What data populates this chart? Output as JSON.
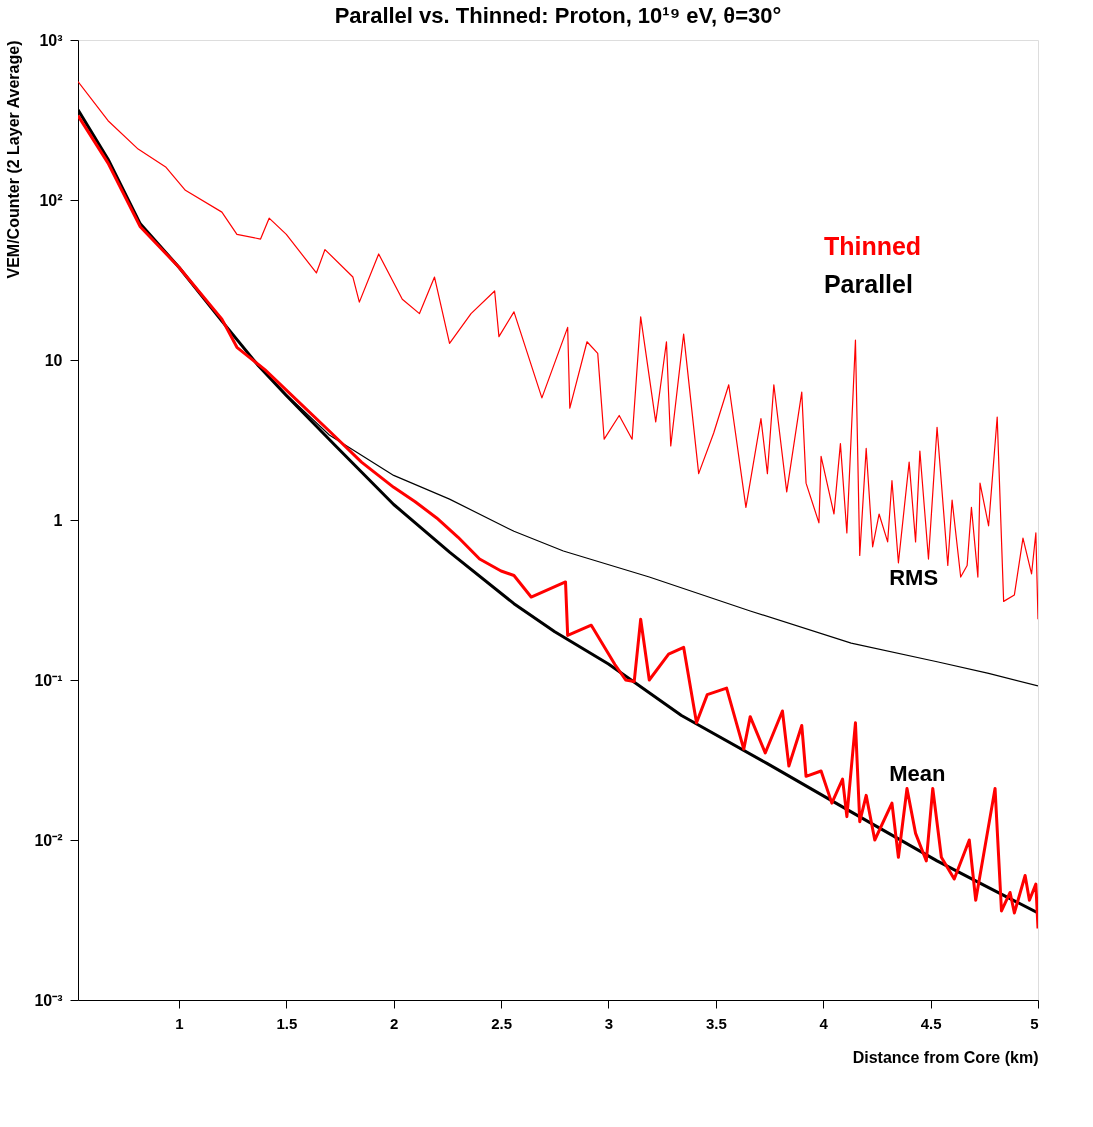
{
  "chart_data": {
    "type": "line",
    "title": "Parallel vs. Thinned: Proton, 10¹⁹ eV, θ=30°",
    "xlabel": "Distance from Core (km)",
    "ylabel": "VEM/Counter (2 Layer Average)",
    "xlim": [
      0.53,
      5
    ],
    "xticks": [
      1,
      1.5,
      2,
      2.5,
      3,
      3.5,
      4,
      4.5,
      5
    ],
    "ylim": [
      0.001,
      1000
    ],
    "yticks": [
      {
        "value": 0.001,
        "label": "10⁻³"
      },
      {
        "value": 0.01,
        "label": "10⁻²"
      },
      {
        "value": 0.1,
        "label": "10⁻¹"
      },
      1,
      10,
      {
        "value": 100,
        "label": "10²"
      },
      {
        "value": 1000,
        "label": "10³"
      }
    ],
    "log": "y",
    "grid": false,
    "legend": "top right",
    "line_style": "solid",
    "marker": "none",
    "series": [
      {
        "name": "Thinned",
        "color": "#ff0000",
        "x": [
          0.53,
          0.67,
          0.82,
          1.0,
          1.2,
          1.27,
          1.4,
          1.55,
          1.7,
          1.85,
          2.0,
          2.1,
          2.2,
          2.3,
          2.4,
          2.5,
          2.56,
          2.64,
          2.8,
          2.81,
          2.92,
          3.03,
          3.08,
          3.12,
          3.15,
          3.19,
          3.28,
          3.35,
          3.41,
          3.46,
          3.55,
          3.63,
          3.66,
          3.73,
          3.81,
          3.84,
          3.9,
          3.92,
          3.99,
          4.04,
          4.09,
          4.11,
          4.15,
          4.17,
          4.2,
          4.24,
          4.32,
          4.35,
          4.39,
          4.43,
          4.48,
          4.51,
          4.55,
          4.61,
          4.68,
          4.71,
          4.8,
          4.83,
          4.87,
          4.89,
          4.94,
          4.96,
          4.99,
          5.0
        ],
        "values": [
          337,
          170,
          68,
          38,
          18,
          12,
          8.7,
          5.6,
          3.6,
          2.3,
          1.6,
          1.3,
          1.03,
          0.78,
          0.57,
          0.48,
          0.45,
          0.33,
          0.41,
          0.19,
          0.22,
          0.125,
          0.1,
          0.098,
          0.24,
          0.1,
          0.145,
          0.16,
          0.054,
          0.081,
          0.089,
          0.037,
          0.059,
          0.035,
          0.064,
          0.029,
          0.052,
          0.025,
          0.027,
          0.017,
          0.024,
          0.014,
          0.054,
          0.013,
          0.019,
          0.01,
          0.017,
          0.0078,
          0.021,
          0.011,
          0.0074,
          0.021,
          0.0078,
          0.0057,
          0.01,
          0.0042,
          0.021,
          0.0036,
          0.0047,
          0.0035,
          0.006,
          0.0042,
          0.0053,
          0.0028
        ]
      },
      {
        "name": "Parallel",
        "color": "#000000",
        "x": [
          0.53,
          0.67,
          0.82,
          1.0,
          1.2,
          1.37,
          1.5,
          1.73,
          2.0,
          2.26,
          2.56,
          2.75,
          3.0,
          3.34,
          3.74,
          4.13,
          4.53,
          4.75,
          5.0
        ],
        "values": [
          366,
          180,
          71,
          38,
          17.5,
          9.2,
          6.0,
          2.9,
          1.25,
          0.63,
          0.3,
          0.2,
          0.126,
          0.06,
          0.03,
          0.015,
          0.0074,
          0.0052,
          0.0035
        ]
      },
      {
        "color": "#ff0000",
        "x": [
          0.53,
          0.67,
          0.81,
          0.94,
          1.03,
          1.2,
          1.27,
          1.38,
          1.42,
          1.5,
          1.64,
          1.68,
          1.81,
          1.84,
          1.93,
          2.04,
          2.12,
          2.19,
          2.26,
          2.36,
          2.47,
          2.49,
          2.56,
          2.69,
          2.81,
          2.82,
          2.9,
          2.95,
          2.98,
          3.05,
          3.11,
          3.15,
          3.22,
          3.27,
          3.29,
          3.35,
          3.42,
          3.49,
          3.56,
          3.64,
          3.71,
          3.74,
          3.77,
          3.83,
          3.9,
          3.92,
          3.98,
          3.99,
          4.05,
          4.08,
          4.11,
          4.15,
          4.17,
          4.2,
          4.23,
          4.26,
          4.3,
          4.32,
          4.35,
          4.4,
          4.43,
          4.45,
          4.49,
          4.53,
          4.58,
          4.6,
          4.64,
          4.67,
          4.69,
          4.72,
          4.73,
          4.77,
          4.81,
          4.84,
          4.89,
          4.93,
          4.97,
          4.99,
          5.0
        ],
        "values": [
          550,
          313,
          208,
          160,
          115,
          84,
          61,
          57,
          77,
          61,
          35,
          49,
          33,
          23,
          46,
          24,
          19.5,
          33,
          12.7,
          19.5,
          27,
          14,
          20,
          5.8,
          16,
          5.0,
          13,
          11,
          3.2,
          4.5,
          3.2,
          18.6,
          4.1,
          13,
          2.9,
          14.5,
          1.95,
          3.5,
          7.0,
          1.2,
          4.3,
          1.95,
          7.0,
          1.5,
          6.3,
          1.7,
          0.96,
          2.5,
          1.09,
          3.0,
          0.83,
          13.3,
          0.6,
          2.8,
          0.68,
          1.09,
          0.73,
          1.76,
          0.54,
          2.3,
          0.73,
          2.7,
          0.57,
          3.8,
          0.52,
          1.33,
          0.44,
          0.52,
          1.2,
          0.44,
          1.7,
          0.92,
          4.4,
          0.31,
          0.34,
          0.77,
          0.46,
          0.83,
          0.24
        ]
      },
      {
        "color": "#000000",
        "x": [
          0.53,
          0.67,
          0.82,
          1.0,
          1.2,
          1.37,
          1.5,
          1.7,
          2.0,
          2.26,
          2.56,
          2.79,
          3.19,
          3.66,
          4.13,
          4.53,
          4.77,
          5.0
        ],
        "values": [
          366,
          180,
          71,
          38,
          17.5,
          9.2,
          6.1,
          3.4,
          1.9,
          1.35,
          0.85,
          0.64,
          0.44,
          0.27,
          0.17,
          0.13,
          0.11,
          0.092
        ]
      }
    ],
    "annotations": [
      "RMS",
      "Mean"
    ]
  }
}
